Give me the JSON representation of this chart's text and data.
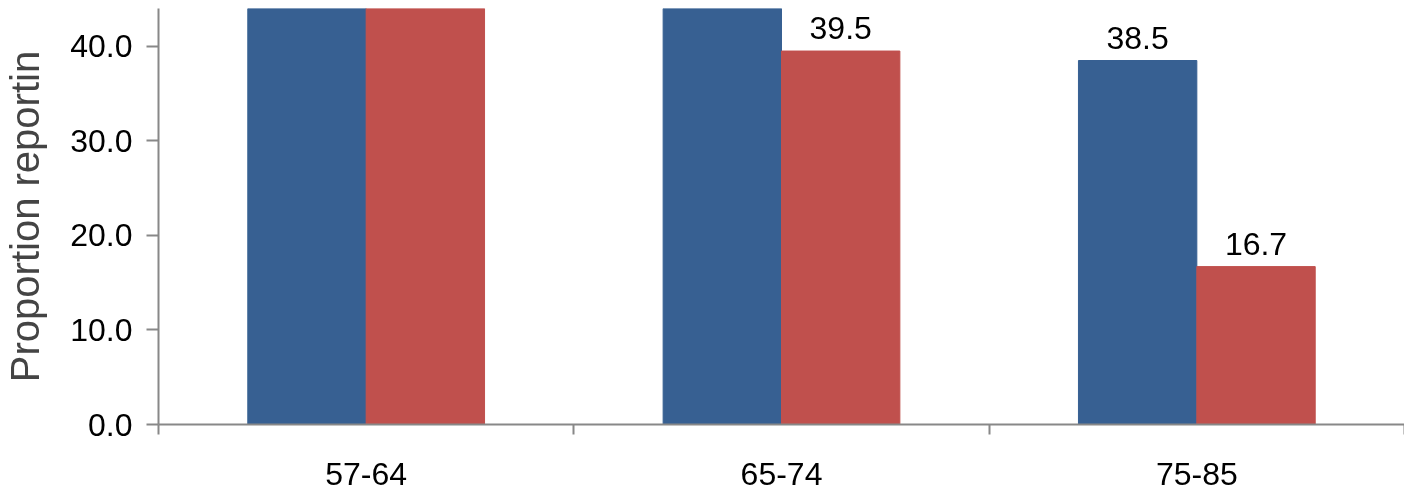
{
  "chart_data": {
    "type": "bar",
    "ylabel": "Proportion reportin",
    "categories": [
      "57-64",
      "65-74",
      "75-85"
    ],
    "series": [
      {
        "color": "#376092",
        "values": [
          44,
          44,
          38.5
        ],
        "value_labels": [
          null,
          null,
          "38.5"
        ]
      },
      {
        "color": "#c0504d",
        "values": [
          44,
          39.5,
          16.7
        ],
        "value_labels": [
          null,
          "39.5",
          "16.7"
        ]
      }
    ],
    "ylim": [
      0,
      44
    ],
    "yticks": [
      {
        "value": 0,
        "label": "0.0"
      },
      {
        "value": 10,
        "label": "10.0"
      },
      {
        "value": 20,
        "label": "20.0"
      },
      {
        "value": 30,
        "label": "30.0"
      },
      {
        "value": 40,
        "label": "40.0"
      }
    ],
    "grid": false
  }
}
